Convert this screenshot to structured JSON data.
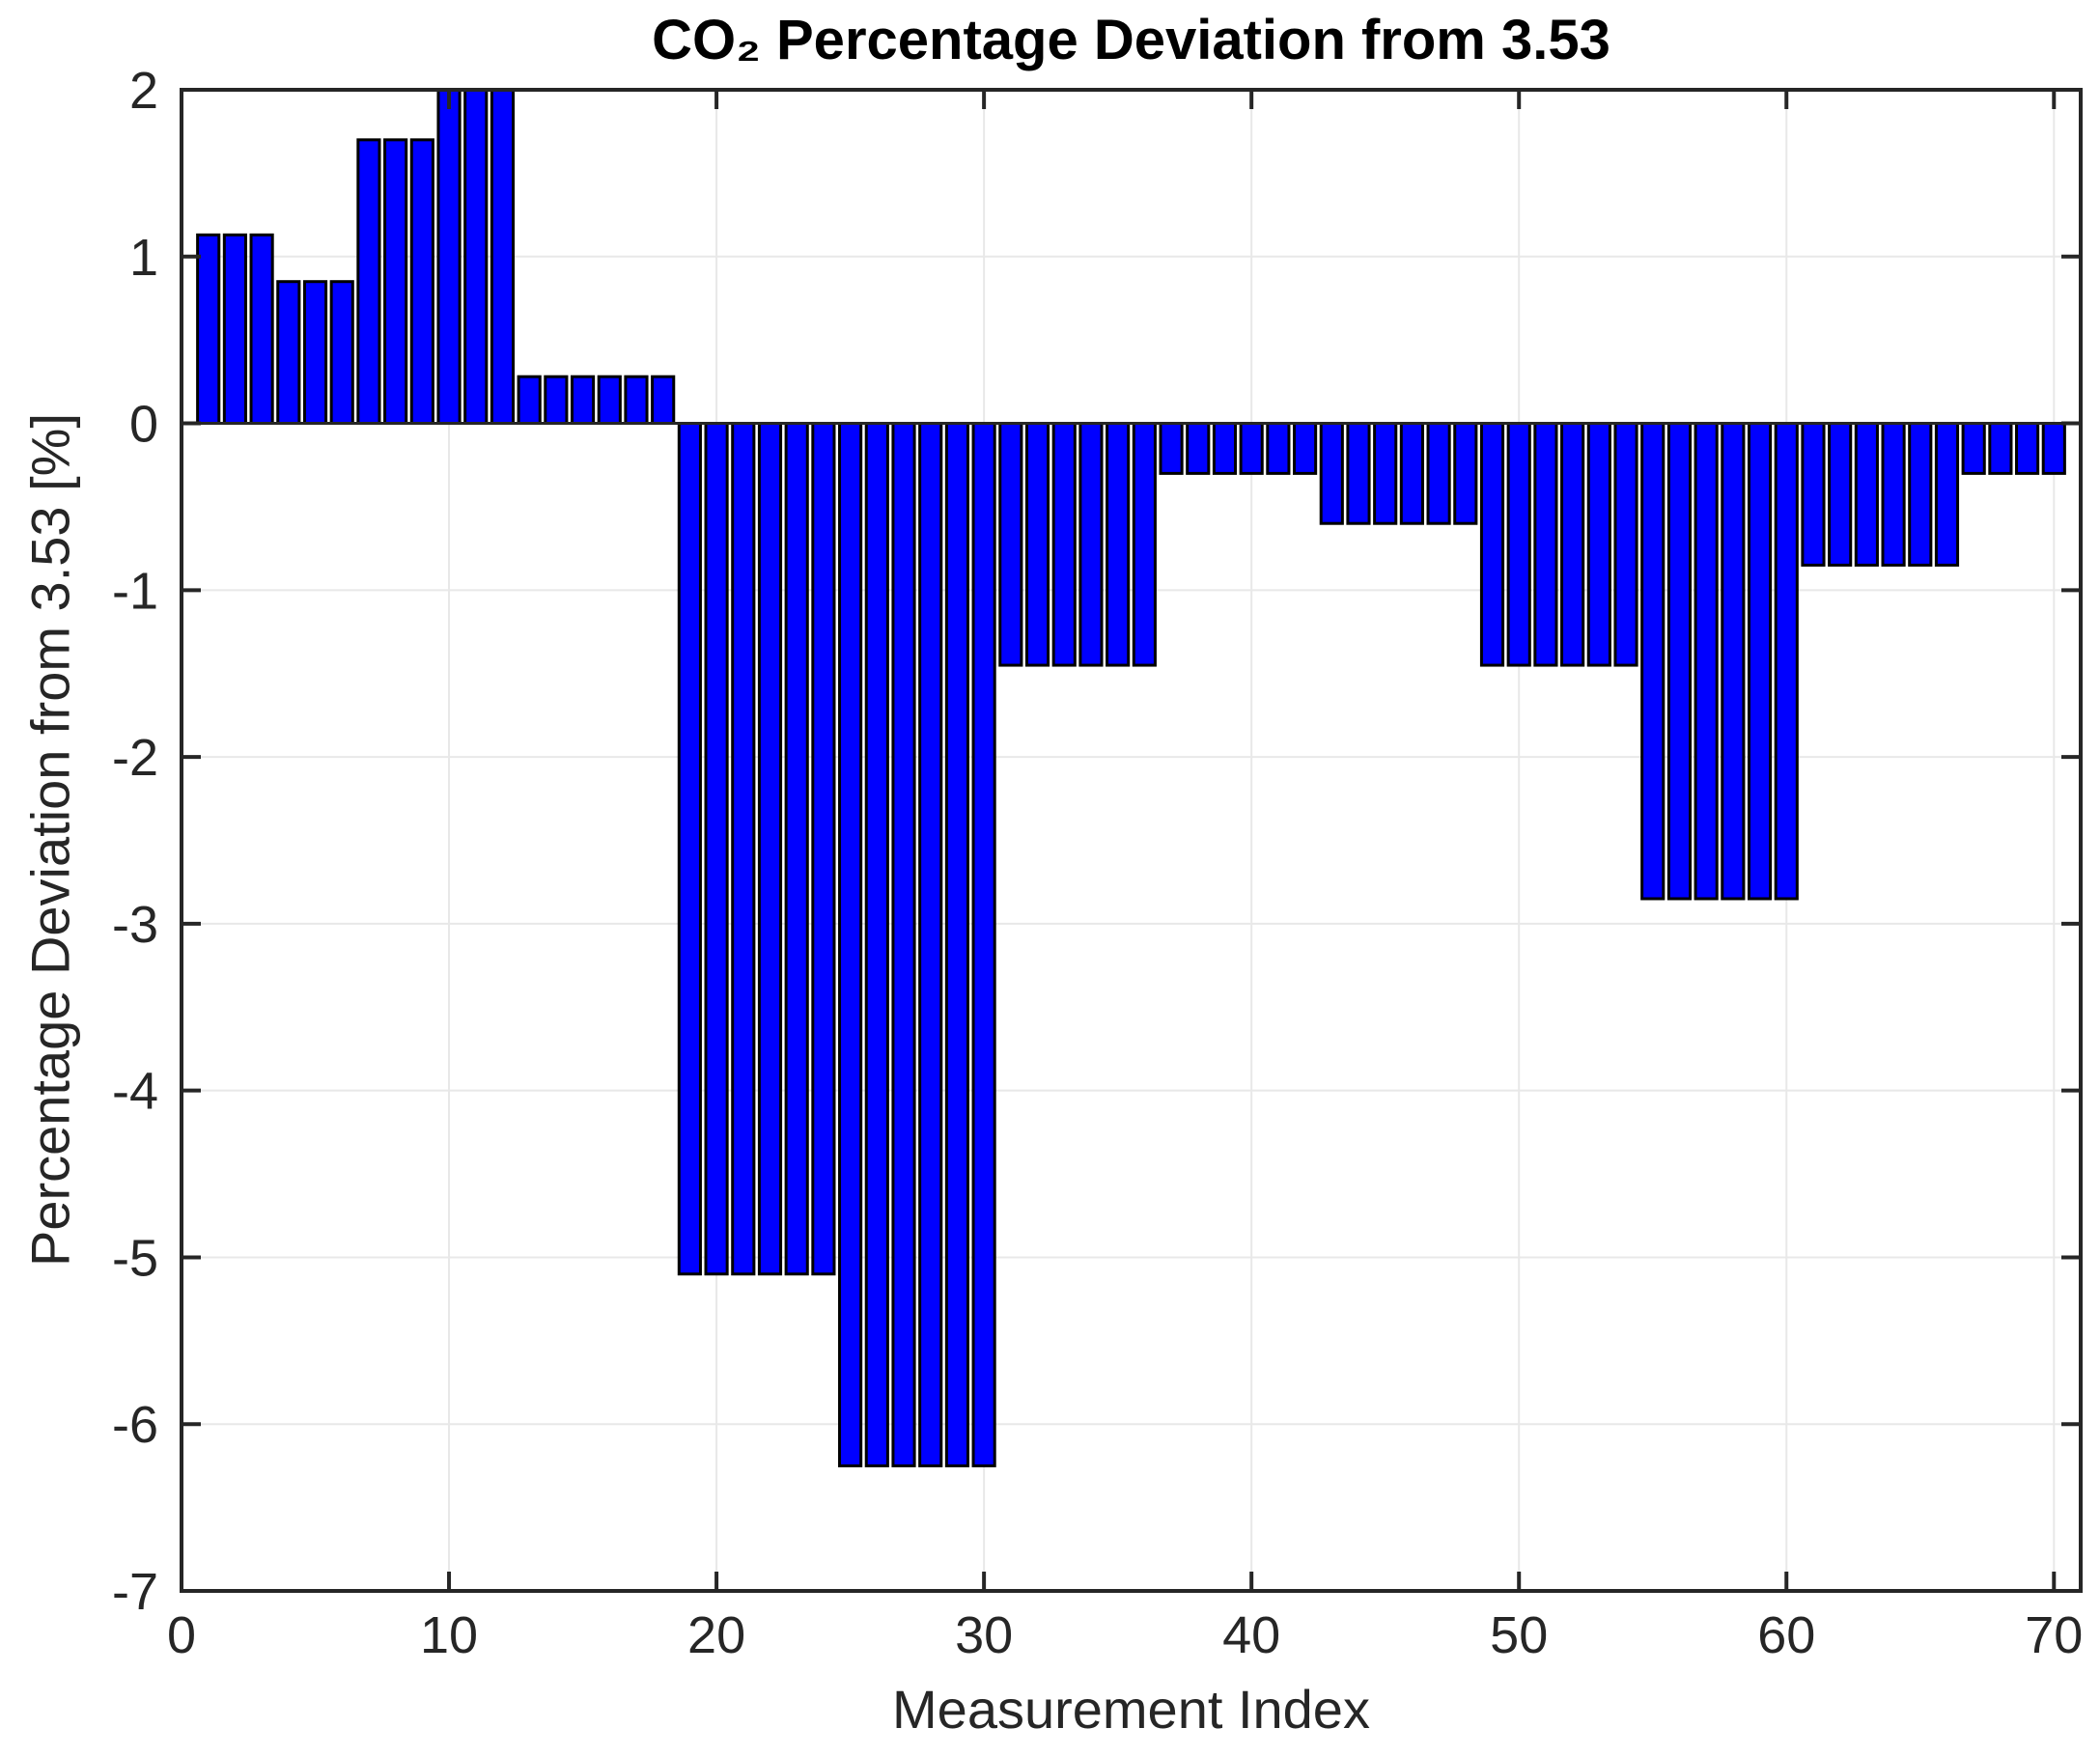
{
  "chart_data": {
    "type": "bar",
    "title": "CO₂ Percentage Deviation from 3.53",
    "xlabel": "Measurement Index",
    "ylabel": "Percentage Deviation from 3.53 [%]",
    "x": [
      1,
      2,
      3,
      4,
      5,
      6,
      7,
      8,
      9,
      10,
      11,
      12,
      13,
      14,
      15,
      16,
      17,
      18,
      19,
      20,
      21,
      22,
      23,
      24,
      25,
      26,
      27,
      28,
      29,
      30,
      31,
      32,
      33,
      34,
      35,
      36,
      37,
      38,
      39,
      40,
      41,
      42,
      43,
      44,
      45,
      46,
      47,
      48,
      49,
      50,
      51,
      52,
      53,
      54,
      55,
      56,
      57,
      58,
      59,
      60,
      61,
      62,
      63,
      64,
      65,
      66,
      67,
      68,
      69,
      70
    ],
    "values": [
      1.13,
      1.13,
      1.13,
      0.85,
      0.85,
      0.85,
      1.7,
      1.7,
      1.7,
      2.0,
      2.0,
      2.0,
      0.28,
      0.28,
      0.28,
      0.28,
      0.28,
      0.28,
      -5.1,
      -5.1,
      -5.1,
      -5.1,
      -5.1,
      -5.1,
      -6.25,
      -6.25,
      -6.25,
      -6.25,
      -6.25,
      -6.25,
      -1.45,
      -1.45,
      -1.45,
      -1.45,
      -1.45,
      -1.45,
      -0.3,
      -0.3,
      -0.3,
      -0.3,
      -0.3,
      -0.3,
      -0.6,
      -0.6,
      -0.6,
      -0.6,
      -0.6,
      -0.6,
      -1.45,
      -1.45,
      -1.45,
      -1.45,
      -1.45,
      -1.45,
      -2.85,
      -2.85,
      -2.85,
      -2.85,
      -2.85,
      -2.85,
      -0.85,
      -0.85,
      -0.85,
      -0.85,
      -0.85,
      -0.85,
      -0.3,
      -0.3,
      -0.3,
      -0.3
    ],
    "xlim": [
      0,
      71
    ],
    "ylim": [
      -7,
      2
    ],
    "xticks": [
      0,
      10,
      20,
      30,
      40,
      50,
      60,
      70
    ],
    "yticks": [
      2,
      1,
      0,
      -1,
      -2,
      -3,
      -4,
      -5,
      -6,
      -7
    ],
    "grid": true,
    "legend": "none",
    "bar_width_ratio": 0.8,
    "bar_color": "#0000FF",
    "bar_edge_color": "#000000",
    "axes_color": "#262626",
    "grid_color": "#E8E8E8",
    "background": "#FFFFFF"
  }
}
